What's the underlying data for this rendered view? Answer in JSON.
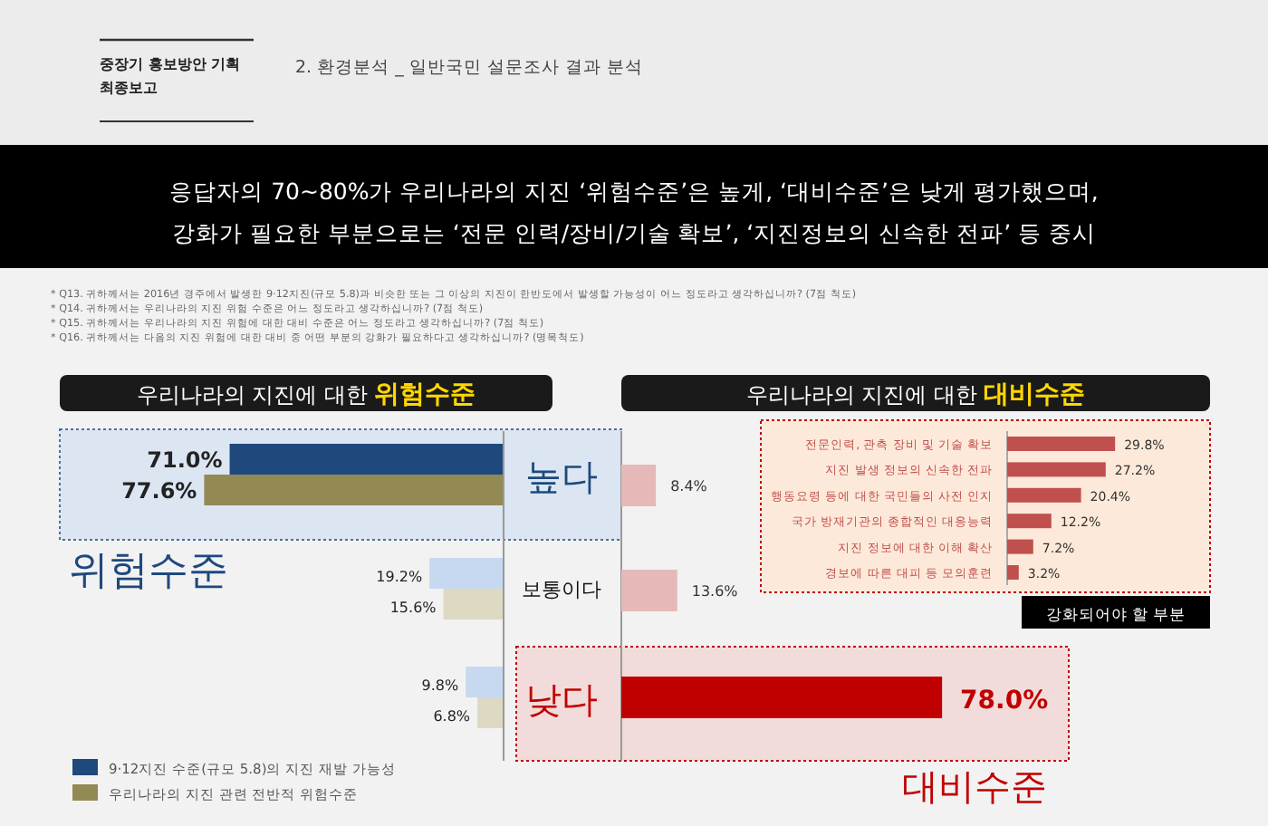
{
  "chart_data": [
    {
      "type": "other",
      "title": "중장기 홍보방안 기획 최종보고",
      "subtitle": "2. 환경분석 _ 일반국민 설문조사 결과 분석",
      "annotations": [
        "응답자의 70~80%가 우리나라의 지진 ‘위험수준’은 높게, ‘대비수준’은 낮게 평가했으며,",
        "강화가 필요한 부분으로는 ‘전문 인력/장비/기술 확보’, ‘지진정보의 신속한 전파’ 등 중시",
        "* Q13. 귀하께서는 2016년 경주에서 발생한 9·12지진(규모 5.8)과 비슷한 또는 그 이상의 지진이 한반도에서 발생할 가능성이 어느 정도라고 생각하십니까? (7점 척도)",
        "* Q14. 귀하께서는 우리나라의 지진 위험 수준은 어느 정도라고 생각하십니까? (7점 척도)",
        "* Q15. 귀하께서는 우리나라의 지진 위험에 대한 대비 수준은 어느 정도라고 생각하십니까? (7점 척도)",
        "* Q16. 귀하께서는 다음의 지진 위험에 대한 대비 중 어떤 부분의 강화가 필요하다고 생각하십니까? (명목척도)"
      ]
    },
    {
      "type": "bar",
      "orientation": "horizontal",
      "title": "우리나라의 지진에 대한 위험수준",
      "categories": [
        "높다",
        "보통이다",
        "낮다"
      ],
      "series": [
        {
          "name": "9·12지진 수준(규모 5.8)의 지진 재발 가능성",
          "color": "#1f497d",
          "colors": [
            "#1f497d",
            "#c6d9f1",
            "#c6d9f1"
          ],
          "values": [
            71.0,
            19.2,
            9.8
          ],
          "value_labels": [
            "71.0%",
            "19.2%",
            "9.8%"
          ]
        },
        {
          "name": "우리나라의 지진 관련 전반적 위험수준",
          "color": "#938953",
          "colors": [
            "#938953",
            "#ddd9c3",
            "#ddd9c3"
          ],
          "values": [
            77.6,
            15.6,
            6.8
          ],
          "value_labels": [
            "77.6%",
            "15.6%",
            "6.8%"
          ]
        }
      ],
      "legend": "bottom left",
      "annotations": [
        "위험수준"
      ]
    },
    {
      "type": "bar",
      "orientation": "horizontal",
      "title": "우리나라의 지진에 대한 대비수준",
      "categories": [
        null,
        null,
        null
      ],
      "values": [
        8.4,
        13.6,
        78.0
      ],
      "value_labels": [
        "8.4%",
        "13.6%",
        "78.0%"
      ],
      "colors": [
        "#e6b9b8",
        "#e6b9b8",
        "#c00000"
      ],
      "annotations": [
        "대비수준"
      ]
    },
    {
      "type": "bar",
      "orientation": "horizontal",
      "title": "강화되어야 할 부분",
      "categories": [
        "전문인력, 관측 장비 및 기술 확보",
        "지진 발생 정보의 신속한 전파",
        "행동요령 등에 대한 국민들의 사전 인지",
        "국가 방재기관의 종합적인 대응능력",
        "지진 정보에 대한 이해 확산",
        "경보에 따른 대피 등 모의훈련"
      ],
      "values": [
        29.8,
        27.2,
        20.4,
        12.2,
        7.2,
        3.2
      ],
      "value_labels": [
        "29.8%",
        "27.2%",
        "20.4%",
        "12.2%",
        "7.2%",
        "3.2%"
      ],
      "color": "#c0504d"
    }
  ]
}
